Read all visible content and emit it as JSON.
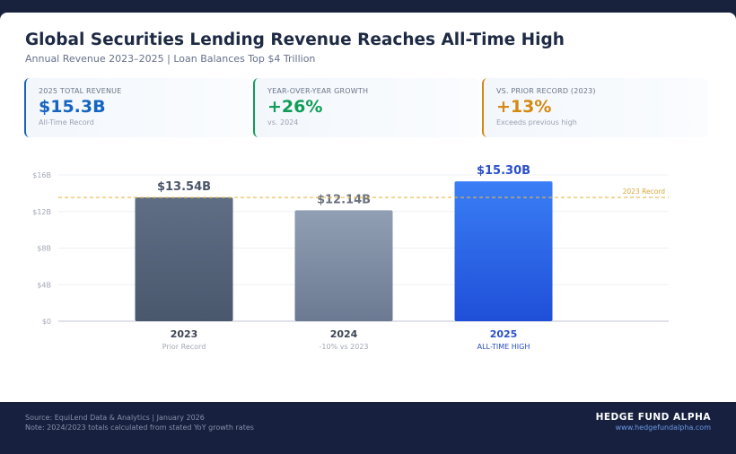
{
  "header": {
    "title": "Global Securities Lending Revenue Reaches All-Time High",
    "subtitle": "Annual Revenue 2023–2025 | Loan Balances Top $4 Trillion"
  },
  "kpis": [
    {
      "label": "2025 TOTAL REVENUE",
      "value": "$15.3B",
      "sub": "All-Time Record",
      "color": "#1565c0"
    },
    {
      "label": "YEAR-OVER-YEAR GROWTH",
      "value": "+26%",
      "sub": "vs. 2024",
      "color": "#0f9d58"
    },
    {
      "label": "VS. PRIOR RECORD (2023)",
      "value": "+13%",
      "sub": "Exceeds previous high",
      "color": "#d68910"
    }
  ],
  "chart_data": {
    "type": "bar",
    "categories": [
      "2023",
      "2024",
      "2025"
    ],
    "values": [
      13.54,
      12.14,
      15.3
    ],
    "data_labels": [
      "$13.54B",
      "$12.14B",
      "$15.30B"
    ],
    "category_sublabels": [
      "Prior Record",
      "-10% vs 2023",
      "ALL-TIME HIGH"
    ],
    "yticks": [
      "$0",
      "$4B",
      "$8B",
      "$12B",
      "$16B"
    ],
    "ytick_values": [
      0,
      4,
      8,
      12,
      16
    ],
    "ylim": [
      0,
      16
    ],
    "grid": true,
    "reference_line": {
      "value": 13.54,
      "label": "2023 Record",
      "color": "#e6b84a"
    },
    "bar_colors": [
      [
        "#5f6e84",
        "#4a586e"
      ],
      [
        "#919fb4",
        "#6b7a92"
      ],
      [
        "#3a7ef5",
        "#1f4fd8"
      ]
    ],
    "label_colors": [
      "#4a5568",
      "#6b7280",
      "#2a4fc9"
    ]
  },
  "footer": {
    "source": "Source: EquiLend Data & Analytics | January 2026",
    "note": "Note: 2024/2023 totals calculated from stated YoY growth rates",
    "brand": "HEDGE FUND ALPHA",
    "url": "www.hedgefundalpha.com"
  }
}
